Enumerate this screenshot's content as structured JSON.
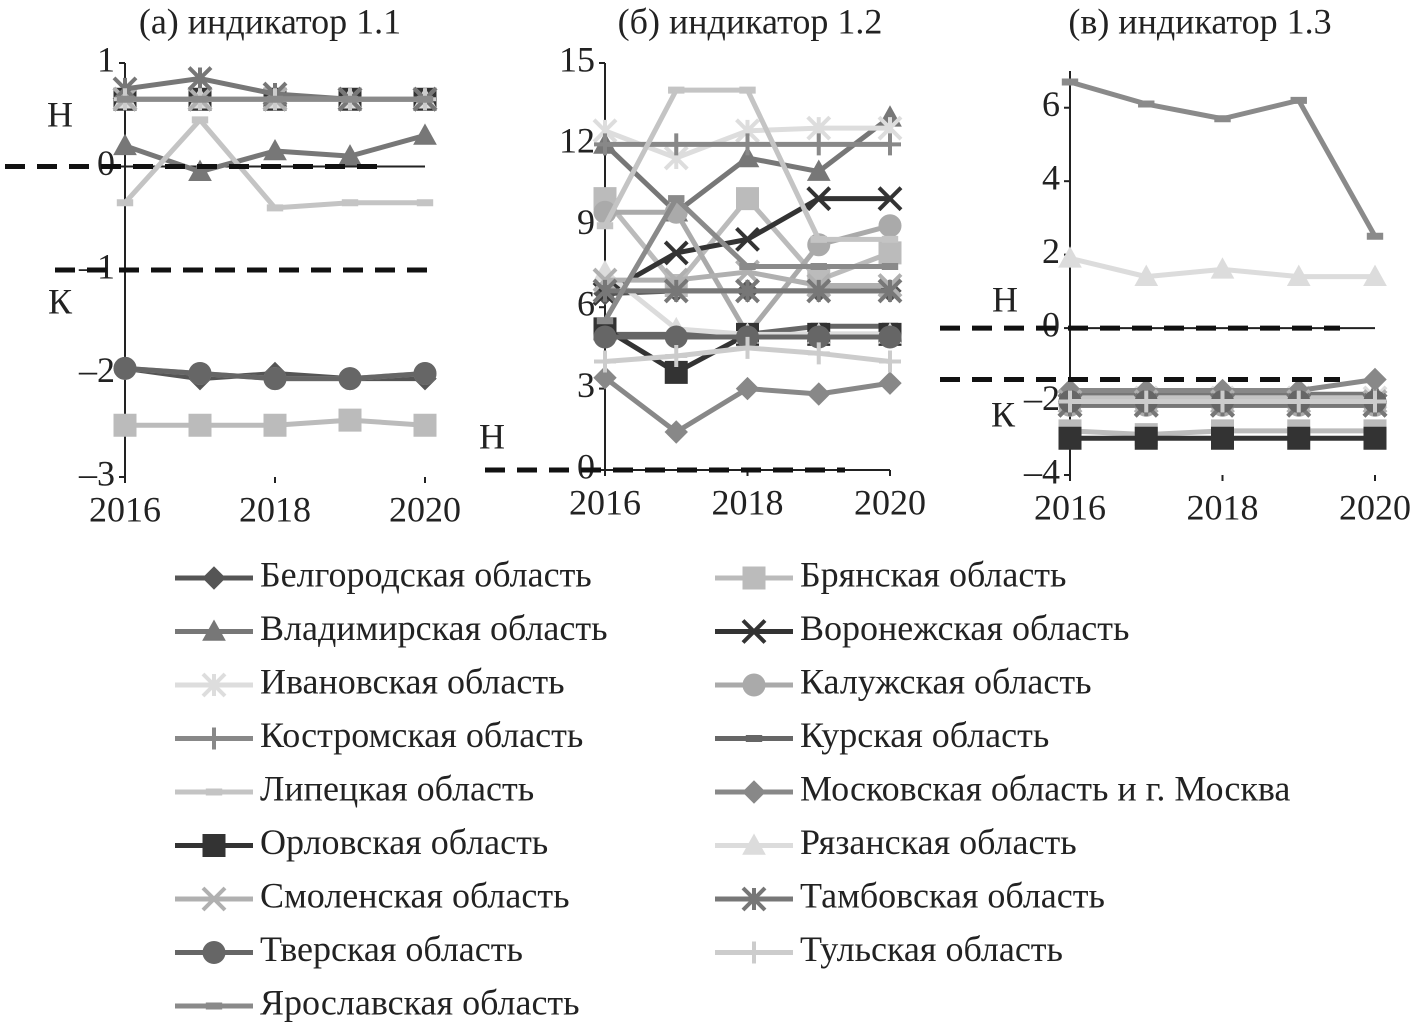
{
  "chart_data": [
    {
      "type": "line",
      "title": "(а) индикатор 1.1",
      "x": [
        2016,
        2017,
        2018,
        2019,
        2020
      ],
      "xlim": [
        2016,
        2020
      ],
      "xticks": [
        2016,
        2018,
        2020
      ],
      "ylim": [
        -3,
        1
      ],
      "yticks": [
        {
          "value": -3,
          "label": "–3"
        },
        {
          "value": -2,
          "label": "–2"
        },
        {
          "value": -1,
          "label": "–1"
        },
        0,
        1
      ],
      "reference_lines": [
        {
          "value": 0,
          "label": "Н"
        },
        {
          "value": -1,
          "label": "К"
        }
      ],
      "series": [
        {
          "values": [
            -1.95,
            -2.05,
            -2.0,
            -2.05,
            -2.05
          ]
        },
        {
          "values": [
            -2.5,
            -2.5,
            -2.5,
            -2.45,
            -2.5
          ]
        },
        {
          "values": [
            0.2,
            -0.05,
            0.15,
            0.1,
            0.3
          ]
        },
        {
          "values": [
            0.65,
            0.65,
            0.65,
            0.65,
            0.65
          ]
        },
        {
          "values": [
            0.65,
            0.65,
            0.65,
            0.65,
            0.65
          ]
        },
        {
          "values": [
            -1.95,
            -2.0,
            -2.05,
            -2.05,
            -2.0
          ]
        },
        {
          "values": [
            0.65,
            0.65,
            0.65,
            0.65,
            0.65
          ]
        },
        {
          "values": [
            0.65,
            0.65,
            0.65,
            0.65,
            0.65
          ]
        },
        {
          "values": [
            -0.35,
            0.45,
            -0.4,
            -0.35,
            -0.35
          ]
        },
        {
          "values": [
            0.65,
            0.65,
            0.65,
            0.65,
            0.65
          ]
        },
        {
          "values": [
            0.65,
            0.65,
            0.65,
            0.65,
            0.65
          ]
        },
        {
          "values": [
            0.65,
            0.65,
            0.65,
            0.65,
            0.65
          ]
        },
        {
          "values": [
            0.65,
            0.65,
            0.65,
            0.65,
            0.65
          ]
        },
        {
          "values": [
            0.75,
            0.85,
            0.7,
            0.65,
            0.65
          ]
        },
        {
          "values": [
            -1.95,
            -2.0,
            -2.05,
            -2.05,
            -2.0
          ]
        },
        {
          "values": [
            0.65,
            0.65,
            0.65,
            0.65,
            0.65
          ]
        },
        {
          "values": [
            0.65,
            0.65,
            0.65,
            0.65,
            0.65
          ]
        }
      ]
    },
    {
      "type": "line",
      "title": "(б) индикатор 1.2",
      "x": [
        2016,
        2017,
        2018,
        2019,
        2020
      ],
      "xlim": [
        2016,
        2020
      ],
      "xticks": [
        2016,
        2018,
        2020
      ],
      "ylim": [
        0,
        15
      ],
      "yticks": [
        0,
        3,
        6,
        9,
        12,
        15
      ],
      "reference_lines": [
        {
          "value": 0,
          "label": "Н"
        }
      ],
      "series": [
        {
          "values": [
            6.5,
            6.6,
            6.6,
            6.6,
            6.6
          ]
        },
        {
          "values": [
            10,
            6.8,
            10,
            7,
            8
          ]
        },
        {
          "values": [
            12,
            9.5,
            11.5,
            11,
            13
          ]
        },
        {
          "values": [
            6.5,
            8,
            8.5,
            10,
            10
          ]
        },
        {
          "values": [
            12.5,
            11.5,
            12.5,
            12.6,
            12.6
          ]
        },
        {
          "values": [
            9.5,
            9.5,
            5,
            8.3,
            9
          ]
        },
        {
          "values": [
            12,
            12,
            12,
            12,
            12
          ]
        },
        {
          "values": [
            5,
            5,
            5,
            5.3,
            5.3
          ]
        },
        {
          "values": [
            9,
            14,
            14,
            8.5,
            8.5
          ]
        },
        {
          "values": [
            3.4,
            1.4,
            3,
            2.8,
            3.2
          ]
        },
        {
          "values": [
            5.2,
            3.6,
            5,
            5,
            5
          ]
        },
        {
          "values": [
            7.3,
            5.2,
            5,
            5,
            5
          ]
        },
        {
          "values": [
            7,
            7,
            7.3,
            6.8,
            6.8
          ]
        },
        {
          "values": [
            6.6,
            6.6,
            6.6,
            6.6,
            6.6
          ]
        },
        {
          "values": [
            4.9,
            4.9,
            4.9,
            4.9,
            4.9
          ]
        },
        {
          "values": [
            4,
            4.2,
            4.5,
            4.3,
            4
          ]
        },
        {
          "values": [
            5.5,
            10,
            7.5,
            7.5,
            7.5
          ]
        }
      ]
    },
    {
      "type": "line",
      "title": "(в) индикатор 1.3",
      "x": [
        2016,
        2017,
        2018,
        2019,
        2020
      ],
      "xlim": [
        2016,
        2020
      ],
      "xticks": [
        2016,
        2018,
        2020
      ],
      "ylim": [
        -4,
        7
      ],
      "yticks": [
        {
          "value": -4,
          "label": "–4"
        },
        {
          "value": -2,
          "label": "–2"
        },
        0,
        2,
        4,
        6
      ],
      "reference_lines": [
        {
          "value": 0,
          "label": "Н"
        },
        {
          "value": -1.4,
          "label": "К"
        }
      ],
      "series": [
        {
          "values": [
            -2,
            -2,
            -2,
            -2,
            -2
          ]
        },
        {
          "values": [
            -2.8,
            -2.9,
            -2.8,
            -2.8,
            -2.8
          ]
        },
        {
          "values": [
            -1.8,
            -1.8,
            -1.8,
            -1.8,
            -1.8
          ]
        },
        {
          "values": [
            -2.1,
            -2.1,
            -2.1,
            -2.1,
            -2.1
          ]
        },
        {
          "values": [
            -2,
            -1.9,
            -1.9,
            -1.9,
            -1.9
          ]
        },
        {
          "values": [
            -2.1,
            -2.1,
            -2.1,
            -2.1,
            -2.1
          ]
        },
        {
          "values": [
            -2,
            -2,
            -2,
            -2,
            -2
          ]
        },
        {
          "values": [
            -2,
            -2,
            -2,
            -2,
            -2
          ]
        },
        {
          "values": [
            -1.9,
            -1.9,
            -1.9,
            -1.9,
            -1.9
          ]
        },
        {
          "values": [
            -1.7,
            -1.7,
            -1.7,
            -1.7,
            -1.4
          ]
        },
        {
          "values": [
            -3,
            -3,
            -3,
            -3,
            -3
          ]
        },
        {
          "values": [
            1.9,
            1.4,
            1.6,
            1.4,
            1.4
          ]
        },
        {
          "values": [
            -2,
            -2,
            -2,
            -2,
            -2
          ]
        },
        {
          "values": [
            -2.1,
            -2.1,
            -2.1,
            -2.1,
            -2.1
          ]
        },
        {
          "values": [
            -2,
            -2,
            -2,
            -2,
            -2
          ]
        },
        {
          "values": [
            -2,
            -2,
            -2,
            -2,
            -2
          ]
        },
        {
          "values": [
            6.7,
            6.1,
            5.7,
            6.2,
            2.5
          ]
        }
      ]
    }
  ],
  "legend": [
    {
      "name": "Белгородская область",
      "color": "#555555",
      "marker": "diamond"
    },
    {
      "name": "Брянская область",
      "color": "#bbbbbb",
      "marker": "square"
    },
    {
      "name": "Владимирская область",
      "color": "#777777",
      "marker": "triangle"
    },
    {
      "name": "Воронежская область",
      "color": "#333333",
      "marker": "x"
    },
    {
      "name": "Ивановская область",
      "color": "#dddddd",
      "marker": "asterisk"
    },
    {
      "name": "Калужская область",
      "color": "#aaaaaa",
      "marker": "circle"
    },
    {
      "name": "Костромская область",
      "color": "#888888",
      "marker": "plus"
    },
    {
      "name": "Курская область",
      "color": "#666666",
      "marker": "dash"
    },
    {
      "name": "Липецкая область",
      "color": "#c4c4c4",
      "marker": "dash"
    },
    {
      "name": "Московская область и г. Москва",
      "color": "#888888",
      "marker": "diamond"
    },
    {
      "name": "Орловская область",
      "color": "#333333",
      "marker": "square"
    },
    {
      "name": "Рязанская область",
      "color": "#dcdcdc",
      "marker": "triangle"
    },
    {
      "name": "Смоленская область",
      "color": "#b0b0b0",
      "marker": "x"
    },
    {
      "name": "Тамбовская область",
      "color": "#777777",
      "marker": "asterisk"
    },
    {
      "name": "Тверская область",
      "color": "#666666",
      "marker": "circle"
    },
    {
      "name": "Тульская область",
      "color": "#cccccc",
      "marker": "plus"
    },
    {
      "name": "Ярославская область",
      "color": "#8a8a8a",
      "marker": "dash"
    }
  ]
}
